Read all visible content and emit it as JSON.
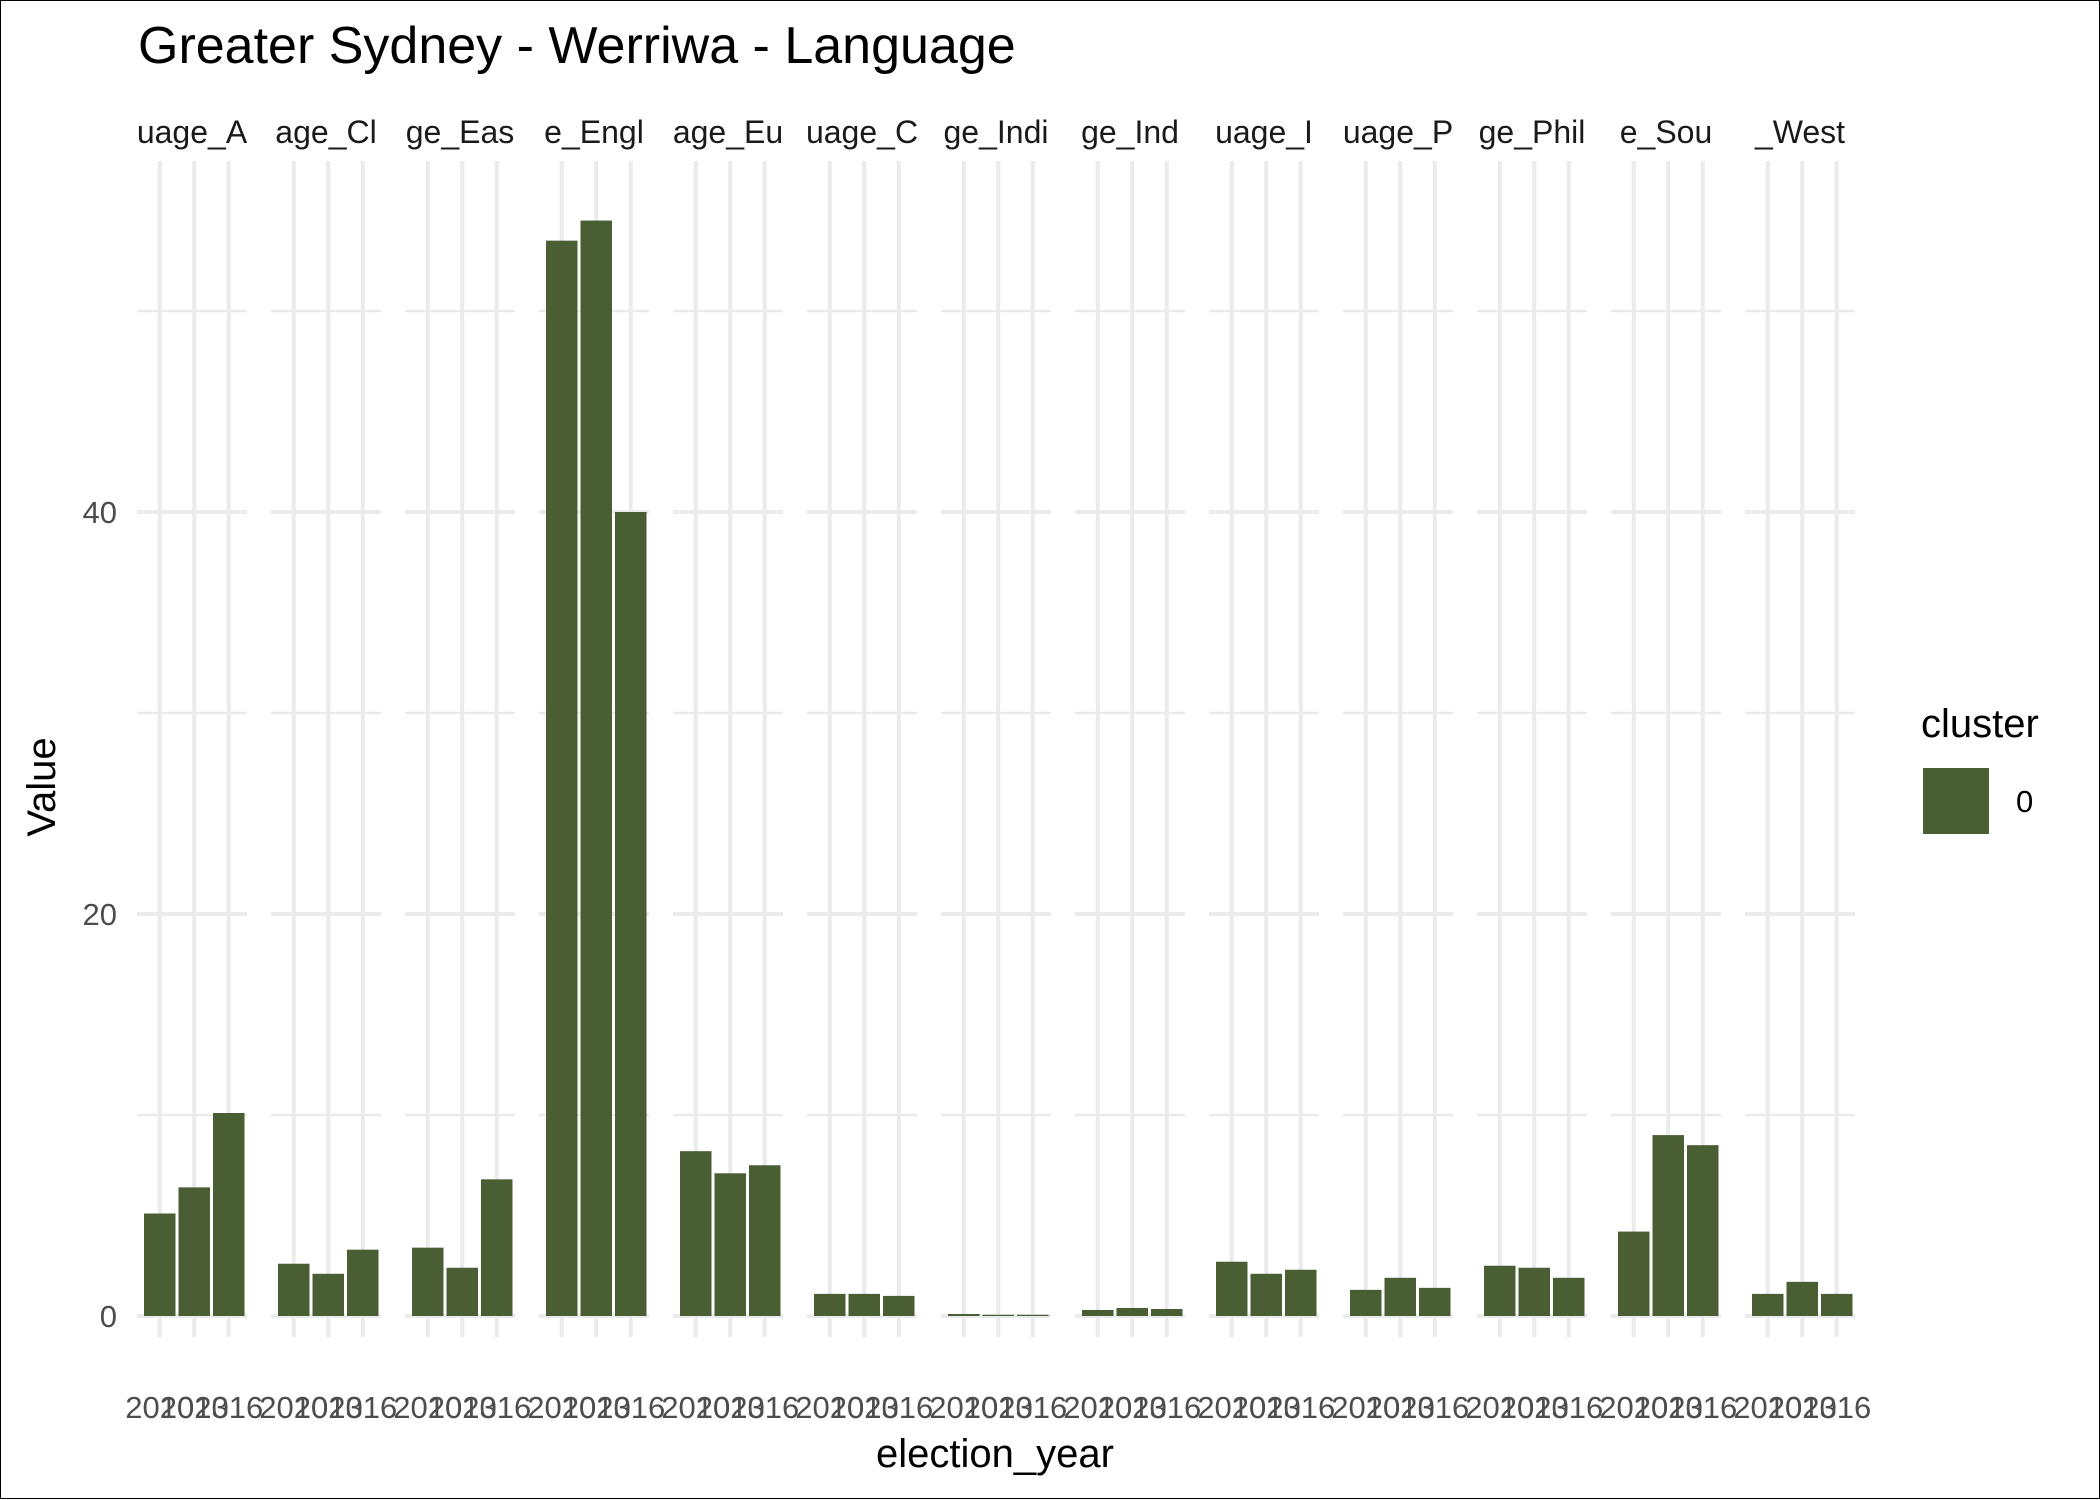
{
  "chart_data": {
    "type": "bar",
    "title": "Greater Sydney - Werriwa - Language",
    "xlabel": "election_year",
    "ylabel": "Value",
    "ylim": [
      0,
      54.5
    ],
    "yticks": [
      0,
      20,
      40
    ],
    "grid": true,
    "legend": {
      "title": "cluster",
      "placement": "right",
      "entries": [
        {
          "label": "0",
          "color": "#4a5e33"
        }
      ]
    },
    "x_categories": [
      "2010",
      "2013",
      "2016"
    ],
    "x_tick_labels": [
      "2010",
      "2013",
      "2016"
    ],
    "bar_color": "#4a5e33",
    "facets": [
      {
        "strip": "uage_A",
        "values": [
          5.1,
          6.4,
          10.1
        ]
      },
      {
        "strip": "age_Cl",
        "values": [
          2.6,
          2.1,
          3.3
        ]
      },
      {
        "strip": "ge_Eas",
        "values": [
          3.4,
          2.4,
          6.8
        ]
      },
      {
        "strip": "e_Engl",
        "values": [
          53.5,
          54.5,
          40.0
        ]
      },
      {
        "strip": "age_Eu",
        "values": [
          8.2,
          7.1,
          7.5
        ]
      },
      {
        "strip": "uage_C",
        "values": [
          1.1,
          1.1,
          1.0
        ]
      },
      {
        "strip": "ge_Indi",
        "values": [
          0.1,
          0.05,
          0.05
        ]
      },
      {
        "strip": "ge_Ind",
        "values": [
          0.3,
          0.4,
          0.35
        ]
      },
      {
        "strip": "uage_I",
        "values": [
          2.7,
          2.1,
          2.3
        ]
      },
      {
        "strip": "uage_P",
        "values": [
          1.3,
          1.9,
          1.4
        ]
      },
      {
        "strip": "ge_Phil",
        "values": [
          2.5,
          2.4,
          1.9
        ]
      },
      {
        "strip": "e_Sou",
        "values": [
          4.2,
          9.0,
          8.5
        ]
      },
      {
        "strip": "_West",
        "values": [
          1.1,
          1.7,
          1.1
        ]
      }
    ]
  }
}
